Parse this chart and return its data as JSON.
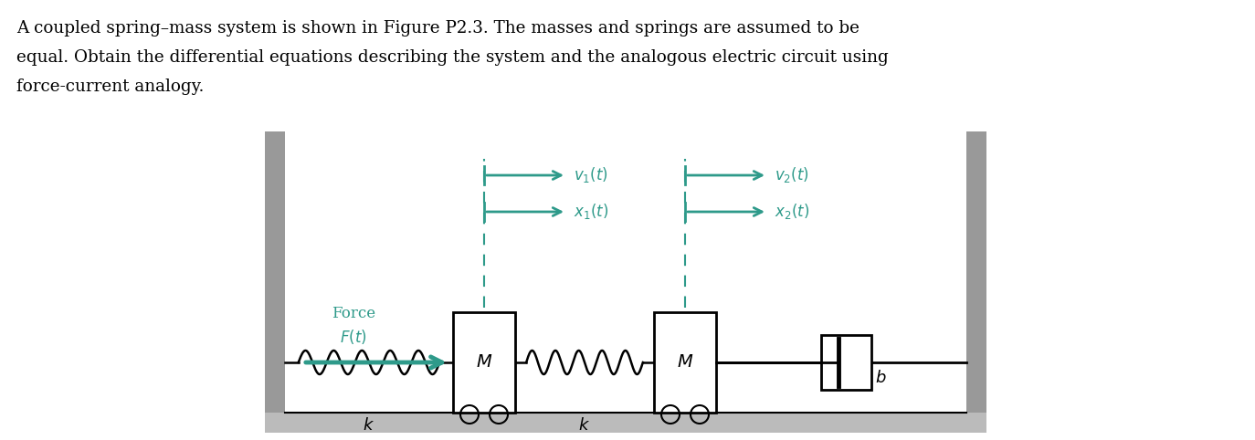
{
  "bg_color": "#ffffff",
  "text_color": "#000000",
  "teal_color": "#2E9A8A",
  "paragraph_line1": "A coupled spring–mass system is shown in Figure P2.3. The masses and springs are assumed to be",
  "paragraph_line2": "equal. Obtain the differential equations describing the system and the analogous electric circuit using",
  "paragraph_line3": "force-current analogy.",
  "fig_width": 13.74,
  "fig_height": 4.82
}
